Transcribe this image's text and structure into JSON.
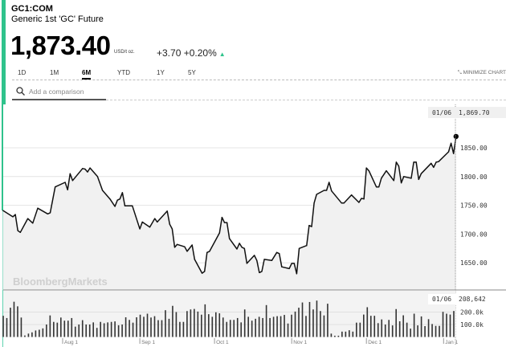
{
  "header": {
    "ticker": "GC1:COM",
    "name": "Generic 1st 'GC' Future",
    "price": "1,873.40",
    "unit": "USD/t oz.",
    "change": "+3.70",
    "change_pct": "+0.20%",
    "direction_icon": "triangle-up-icon",
    "accent_color": "#2fc38c"
  },
  "tabs": [
    {
      "label": "1D"
    },
    {
      "label": "1M"
    },
    {
      "label": "6M",
      "active": true
    },
    {
      "label": "YTD"
    },
    {
      "label": "1Y"
    },
    {
      "label": "5Y"
    }
  ],
  "minimize_label": "MINIMIZE CHART",
  "search": {
    "placeholder": "Add a comparison"
  },
  "watermark": "BloombergMarkets",
  "chart_data": [
    {
      "type": "line",
      "title": "",
      "xlabel": "",
      "ylabel": "",
      "ylim": [
        1615,
        1895
      ],
      "yticks": [
        "1850.00",
        "1800.00",
        "1750.00",
        "1700.00",
        "1650.00"
      ],
      "xticks": [
        "Aug 1",
        "Sep 1",
        "Oct 1",
        "Nov 1",
        "Dec 1",
        "Jan 1"
      ],
      "grid": true,
      "crosshair": {
        "date": "01/06",
        "value": "1,869.70"
      },
      "points": [
        [
          "07/08",
          1741
        ],
        [
          "07/12",
          1730
        ],
        [
          "07/13",
          1734
        ],
        [
          "07/14",
          1706
        ],
        [
          "07/15",
          1703
        ],
        [
          "07/18",
          1727
        ],
        [
          "07/20",
          1719
        ],
        [
          "07/22",
          1745
        ],
        [
          "07/26",
          1735
        ],
        [
          "07/27",
          1737
        ],
        [
          "07/29",
          1782
        ],
        [
          "08/02",
          1790
        ],
        [
          "08/03",
          1777
        ],
        [
          "08/04",
          1805
        ],
        [
          "08/05",
          1793
        ],
        [
          "08/09",
          1814
        ],
        [
          "08/10",
          1813
        ],
        [
          "08/11",
          1808
        ],
        [
          "08/12",
          1815
        ],
        [
          "08/15",
          1800
        ],
        [
          "08/17",
          1776
        ],
        [
          "08/20",
          1761
        ],
        [
          "08/22",
          1748
        ],
        [
          "08/23",
          1759
        ],
        [
          "08/24",
          1761
        ],
        [
          "08/25",
          1772
        ],
        [
          "08/26",
          1749
        ],
        [
          "08/29",
          1749
        ],
        [
          "09/01",
          1709
        ],
        [
          "09/02",
          1721
        ],
        [
          "09/05",
          1712
        ],
        [
          "09/07",
          1727
        ],
        [
          "09/08",
          1721
        ],
        [
          "09/12",
          1740
        ],
        [
          "09/13",
          1717
        ],
        [
          "09/14",
          1709
        ],
        [
          "09/15",
          1677
        ],
        [
          "09/16",
          1682
        ],
        [
          "09/19",
          1678
        ],
        [
          "09/20",
          1670
        ],
        [
          "09/22",
          1681
        ],
        [
          "09/23",
          1656
        ],
        [
          "09/26",
          1632
        ],
        [
          "09/27",
          1635
        ],
        [
          "09/28",
          1668
        ],
        [
          "09/29",
          1670
        ],
        [
          "10/03",
          1702
        ],
        [
          "10/04",
          1729
        ],
        [
          "10/05",
          1720
        ],
        [
          "10/06",
          1720
        ],
        [
          "10/07",
          1692
        ],
        [
          "10/10",
          1674
        ],
        [
          "10/11",
          1684
        ],
        [
          "10/12",
          1677
        ],
        [
          "10/13",
          1675
        ],
        [
          "10/14",
          1649
        ],
        [
          "10/17",
          1663
        ],
        [
          "10/18",
          1654
        ],
        [
          "10/19",
          1633
        ],
        [
          "10/20",
          1635
        ],
        [
          "10/21",
          1656
        ],
        [
          "10/24",
          1654
        ],
        [
          "10/26",
          1668
        ],
        [
          "10/27",
          1666
        ],
        [
          "10/28",
          1643
        ],
        [
          "10/31",
          1640
        ],
        [
          "11/01",
          1649
        ],
        [
          "11/02",
          1649
        ],
        [
          "11/03",
          1631
        ],
        [
          "11/04",
          1675
        ],
        [
          "11/07",
          1680
        ],
        [
          "11/08",
          1715
        ],
        [
          "11/09",
          1713
        ],
        [
          "11/10",
          1754
        ],
        [
          "11/11",
          1769
        ],
        [
          "11/14",
          1776
        ],
        [
          "11/15",
          1776
        ],
        [
          "11/16",
          1790
        ],
        [
          "11/17",
          1775
        ],
        [
          "11/21",
          1754
        ],
        [
          "11/22",
          1754
        ],
        [
          "11/25",
          1768
        ],
        [
          "11/28",
          1755
        ],
        [
          "11/29",
          1762
        ],
        [
          "11/30",
          1761
        ],
        [
          "12/01",
          1815
        ],
        [
          "12/02",
          1810
        ],
        [
          "12/05",
          1782
        ],
        [
          "12/06",
          1782
        ],
        [
          "12/07",
          1797
        ],
        [
          "12/09",
          1810
        ],
        [
          "12/12",
          1793
        ],
        [
          "12/13",
          1825
        ],
        [
          "12/14",
          1818
        ],
        [
          "12/15",
          1789
        ],
        [
          "12/16",
          1800
        ],
        [
          "12/19",
          1797
        ],
        [
          "12/20",
          1825
        ],
        [
          "12/21",
          1825
        ],
        [
          "12/22",
          1795
        ],
        [
          "12/23",
          1805
        ],
        [
          "12/27",
          1823
        ],
        [
          "12/28",
          1816
        ],
        [
          "12/29",
          1825
        ],
        [
          "12/30",
          1826
        ],
        [
          "01/03",
          1843
        ],
        [
          "01/04",
          1858
        ],
        [
          "01/05",
          1840
        ],
        [
          "01/06",
          1869.7
        ]
      ]
    },
    {
      "type": "bar",
      "title": "",
      "yticks": [
        "200.0k",
        "100.0k"
      ],
      "crosshair": {
        "date": "01/06",
        "value": "208,642"
      },
      "unit": "thousands",
      "values": [
        170,
        152,
        235,
        283,
        246,
        156,
        12,
        27,
        37,
        52,
        58,
        69,
        100,
        173,
        121,
        115,
        156,
        131,
        131,
        152,
        83,
        100,
        135,
        100,
        100,
        117,
        73,
        121,
        110,
        117,
        121,
        125,
        94,
        100,
        158,
        137,
        115,
        158,
        179,
        162,
        187,
        156,
        167,
        135,
        135,
        215,
        146,
        250,
        200,
        121,
        121,
        208,
        221,
        225,
        204,
        179,
        262,
        183,
        162,
        198,
        190,
        156,
        121,
        137,
        137,
        152,
        117,
        221,
        162,
        131,
        146,
        162,
        152,
        256,
        152,
        162,
        167,
        167,
        177,
        108,
        179,
        204,
        235,
        277,
        169,
        281,
        221,
        292,
        208,
        173,
        267,
        27,
        10,
        10,
        43,
        43,
        54,
        43,
        115,
        115,
        180,
        239,
        170,
        170,
        111,
        141,
        100,
        137,
        93,
        224,
        126,
        174,
        115,
        67,
        187,
        93,
        165,
        87,
        143,
        104,
        89,
        89,
        202,
        187,
        180,
        208.642
      ]
    }
  ]
}
